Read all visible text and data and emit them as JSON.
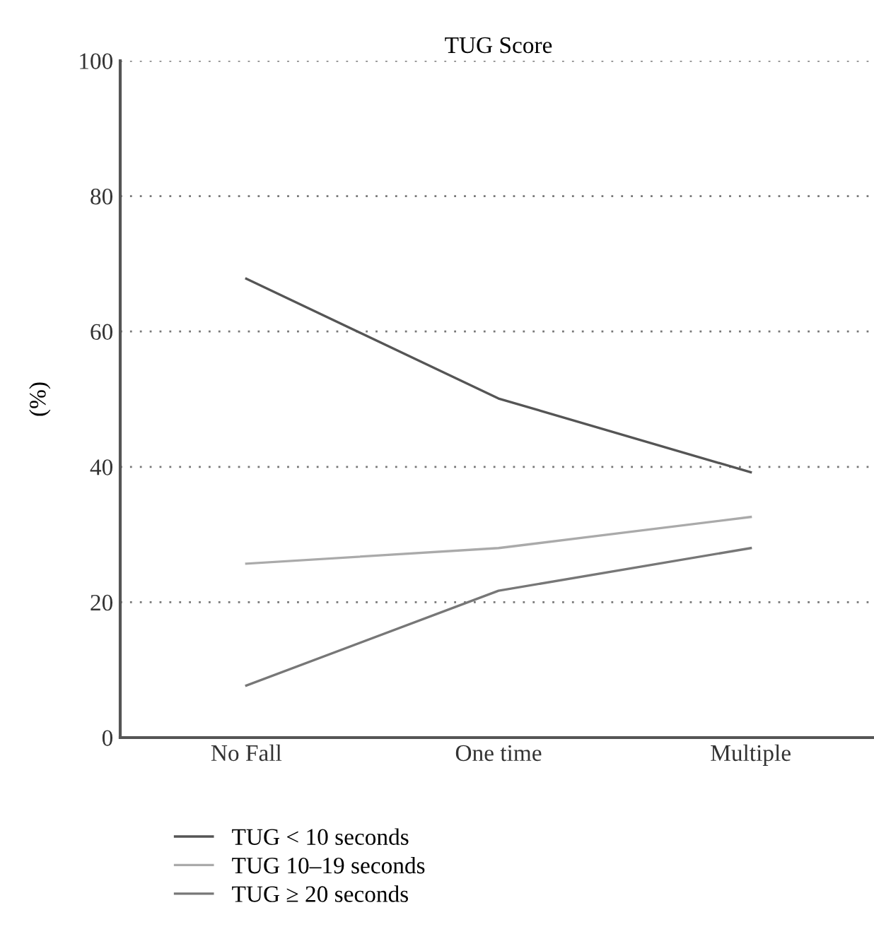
{
  "chart_data": {
    "type": "line",
    "title": "TUG Score",
    "ylabel": "(%)",
    "categories": [
      "No Fall",
      "One time",
      "Multiple"
    ],
    "series": [
      {
        "name": "TUG < 10 seconds",
        "color": "#555555",
        "values": [
          67.8,
          50.1,
          39.2
        ]
      },
      {
        "name": "TUG 10–19 seconds",
        "color": "#aaaaaa",
        "values": [
          25.7,
          28.0,
          32.6
        ]
      },
      {
        "name": "TUG ≥ 20 seconds",
        "color": "#777777",
        "values": [
          7.7,
          21.7,
          28.0
        ]
      }
    ],
    "ylim": [
      0,
      100
    ],
    "yticks": [
      0,
      20,
      40,
      60,
      80,
      100
    ],
    "grid": "y",
    "legend": "bottom left",
    "line_style": "solid",
    "marker": "none"
  }
}
